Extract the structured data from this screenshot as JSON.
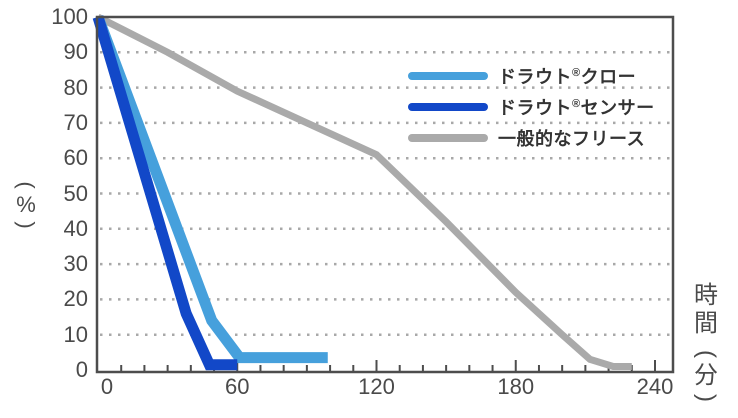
{
  "chart_data": {
    "type": "line",
    "title": "",
    "xlabel": "時間（分）",
    "ylabel": "（%）",
    "xlim": [
      0,
      240
    ],
    "ylim": [
      0,
      100
    ],
    "x_ticks": [
      0,
      60,
      120,
      180,
      240
    ],
    "x_minor_tick_step": 10,
    "y_ticks": [
      0,
      10,
      20,
      30,
      40,
      50,
      60,
      70,
      80,
      90,
      100
    ],
    "grid": "horizontal dotted",
    "legend_position": "upper right",
    "series": [
      {
        "name": "ドラウト®クロー",
        "color": "#46a0dc",
        "points": [
          [
            0,
            100
          ],
          [
            49,
            14
          ],
          [
            61,
            3.5
          ],
          [
            99,
            3.5
          ]
        ]
      },
      {
        "name": "ドラウト®センサー",
        "color": "#1248c8",
        "points": [
          [
            0,
            100
          ],
          [
            38,
            16
          ],
          [
            48,
            1.5
          ],
          [
            60,
            1.5
          ]
        ]
      },
      {
        "name": "一般的なフリース",
        "color": "#aaaaaa",
        "points": [
          [
            0,
            100
          ],
          [
            30,
            90
          ],
          [
            60,
            79
          ],
          [
            90,
            70
          ],
          [
            120,
            61
          ],
          [
            150,
            42
          ],
          [
            180,
            22
          ],
          [
            200,
            10
          ],
          [
            212,
            3
          ],
          [
            222,
            1
          ],
          [
            230,
            1
          ]
        ]
      }
    ]
  },
  "axes": {
    "y_tick_labels": [
      "100",
      "90",
      "80",
      "70",
      "60",
      "50",
      "40",
      "30",
      "20",
      "10",
      "0"
    ],
    "x_tick_labels": [
      "0",
      "60",
      "120",
      "180",
      "240"
    ],
    "ylabel_text": "%",
    "xlabel_line1": "時",
    "xlabel_line2": "間",
    "xlabel_line3": "分"
  },
  "legend": {
    "items": [
      {
        "label_main": "ドラウト",
        "label_mark": "®",
        "label_tail": "クロー",
        "color": "#46a0dc"
      },
      {
        "label_main": "ドラウト",
        "label_mark": "®",
        "label_tail": "センサー",
        "color": "#1248c8"
      },
      {
        "label_main": "一般的なフリース",
        "label_mark": "",
        "label_tail": "",
        "color": "#aaaaaa"
      }
    ]
  }
}
